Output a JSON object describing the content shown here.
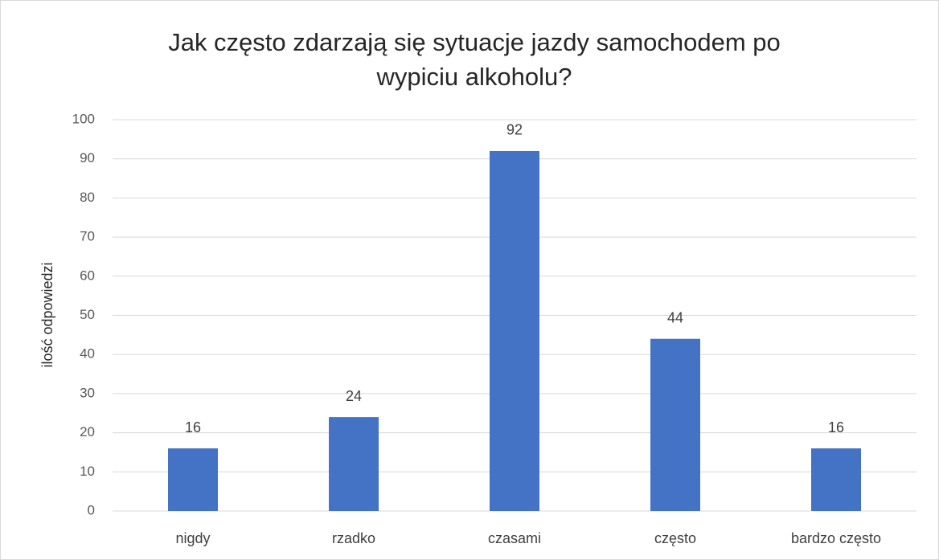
{
  "chart_data": {
    "type": "bar",
    "title": [
      "Jak często zdarzają się sytuacje jazdy samochodem po",
      "wypiciu alkoholu?"
    ],
    "y_label": "ilość odpowiedzi",
    "categories": [
      "nigdy",
      "rzadko",
      "czasami",
      "często",
      "bardzo często"
    ],
    "values": [
      16,
      24,
      92,
      44,
      16
    ],
    "color": "#4472c4",
    "ylim": [
      0,
      100
    ],
    "yticks": [
      0,
      10,
      20,
      30,
      40,
      50,
      60,
      70,
      80,
      90,
      100
    ],
    "grid": true
  }
}
